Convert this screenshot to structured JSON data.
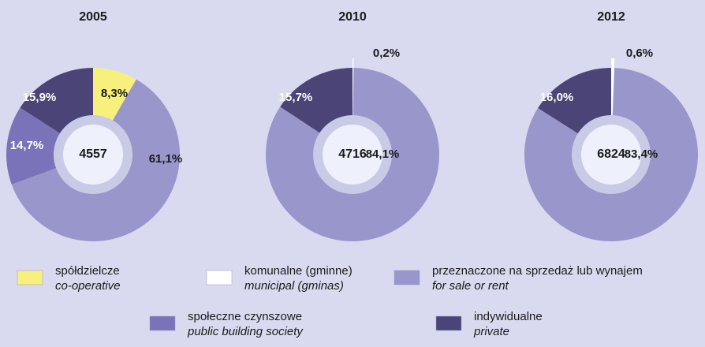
{
  "legend": [
    {
      "label": "spółdzielcze",
      "label_en": "co-operative",
      "color": "#f7f07c"
    },
    {
      "label": "komunalne (gminne)",
      "label_en": "municipal (gminas)",
      "color": "#ffffff"
    },
    {
      "label": "przeznaczone na sprzedaż lub wynajem",
      "label_en": "for sale or rent",
      "color": "#9896cb"
    },
    {
      "label": "społeczne czynszowe",
      "label_en": "public building society",
      "color": "#7a73ba"
    },
    {
      "label": "indywidualne",
      "label_en": "private",
      "color": "#4a4477"
    }
  ],
  "chart_data": [
    {
      "type": "pie",
      "title": "2005",
      "center_label": "4557",
      "categories": [
        "spółdzielcze",
        "przeznaczone na sprzedaż lub wynajem",
        "społeczne czynszowe",
        "indywidualne"
      ],
      "values": [
        8.3,
        61.1,
        14.7,
        15.9
      ],
      "value_labels": [
        "8,3%",
        "61,1%",
        "14,7%",
        "15,9%"
      ]
    },
    {
      "type": "pie",
      "title": "2010",
      "center_label": "4716",
      "categories": [
        "komunalne (gminne)",
        "przeznaczone na sprzedaż lub wynajem",
        "indywidualne"
      ],
      "values": [
        0.2,
        84.1,
        15.7
      ],
      "value_labels": [
        "0,2%",
        "84,1%",
        "15,7%"
      ]
    },
    {
      "type": "pie",
      "title": "2012",
      "center_label": "6824",
      "categories": [
        "komunalne (gminne)",
        "przeznaczone na sprzedaż lub wynajem",
        "indywidualne"
      ],
      "values": [
        0.6,
        83.4,
        16.0
      ],
      "value_labels": [
        "0,6%",
        "83,4%",
        "16,0%"
      ]
    }
  ]
}
